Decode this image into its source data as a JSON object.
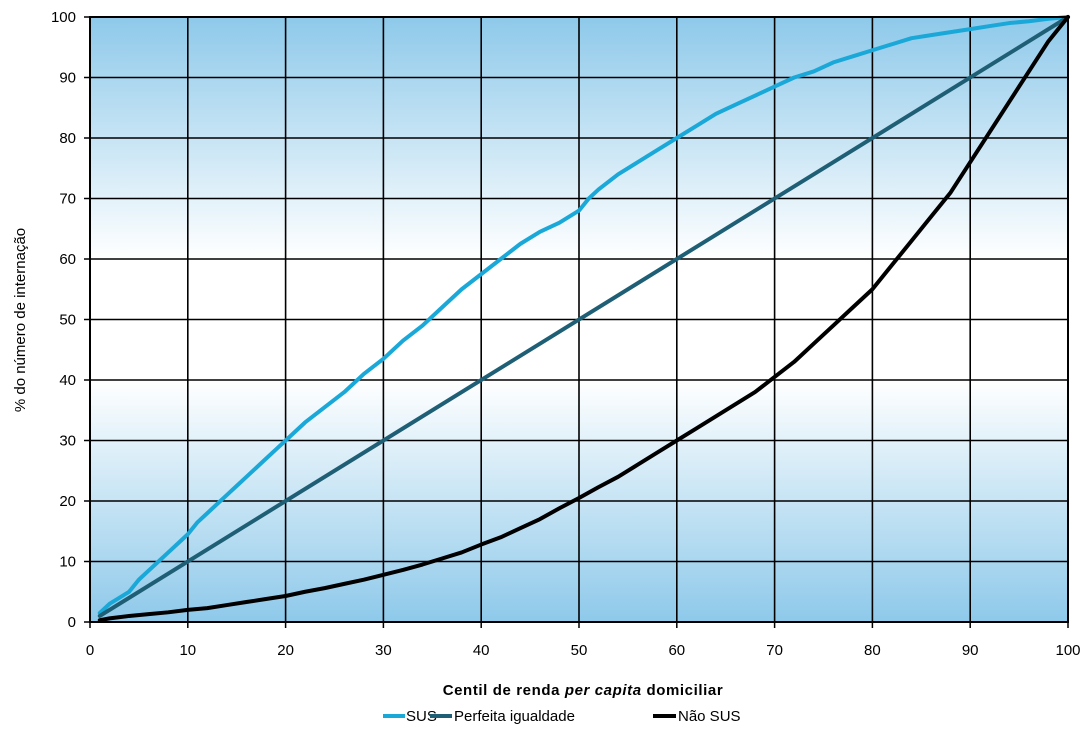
{
  "chart_data": {
    "type": "line",
    "title": "",
    "xlabel_parts": [
      "Centil de renda ",
      "per capita",
      " domiciliar"
    ],
    "ylabel": "% do número de internação",
    "xlim": [
      0,
      100
    ],
    "ylim": [
      0,
      100
    ],
    "xticks": [
      "0",
      "10",
      "20",
      "30",
      "40",
      "50",
      "60",
      "70",
      "80",
      "90",
      "100"
    ],
    "yticks": [
      "0",
      "10",
      "20",
      "30",
      "40",
      "50",
      "60",
      "70",
      "80",
      "90",
      "100"
    ],
    "grid": true,
    "legend_position": "bottom",
    "colors": {
      "sus": "#1aa8d8",
      "igualdade": "#1f5f75",
      "naosus": "#000000",
      "bg_edge": "#8ec9ea",
      "bg_center": "#ffffff"
    },
    "series": [
      {
        "name": "SUS",
        "x": [
          1,
          2,
          3,
          4,
          5,
          6,
          7,
          8,
          9,
          10,
          11,
          12,
          13,
          14,
          15,
          16,
          17,
          18,
          19,
          20,
          22,
          24,
          26,
          28,
          30,
          32,
          34,
          36,
          38,
          40,
          42,
          44,
          46,
          48,
          50,
          51,
          52,
          54,
          56,
          58,
          60,
          62,
          64,
          66,
          68,
          70,
          72,
          74,
          76,
          78,
          80,
          82,
          84,
          86,
          88,
          90,
          92,
          94,
          96,
          98,
          100
        ],
        "values": [
          1.5,
          3,
          4,
          5,
          7,
          8.5,
          10,
          11.5,
          13,
          14.5,
          16.5,
          18,
          19.5,
          21,
          22.5,
          24,
          25.5,
          27,
          28.5,
          30,
          33,
          35.5,
          38,
          41,
          43.5,
          46.5,
          49,
          52,
          55,
          57.5,
          60,
          62.5,
          64.5,
          66,
          68,
          70,
          71.5,
          74,
          76,
          78,
          80,
          82,
          84,
          85.5,
          87,
          88.5,
          90,
          91,
          92.5,
          93.5,
          94.5,
          95.5,
          96.5,
          97,
          97.5,
          98,
          98.5,
          99,
          99.3,
          99.7,
          100
        ]
      },
      {
        "name": "Perfeita igualdade",
        "x": [
          1,
          100
        ],
        "values": [
          1,
          100
        ]
      },
      {
        "name": "Não SUS",
        "x": [
          1,
          2,
          4,
          6,
          8,
          10,
          12,
          14,
          16,
          18,
          20,
          22,
          24,
          26,
          28,
          30,
          32,
          34,
          36,
          38,
          40,
          42,
          44,
          46,
          48,
          50,
          52,
          54,
          56,
          58,
          60,
          62,
          64,
          66,
          68,
          70,
          72,
          74,
          76,
          78,
          80,
          82,
          84,
          86,
          88,
          90,
          92,
          94,
          96,
          98,
          100
        ],
        "values": [
          0.3,
          0.6,
          1,
          1.3,
          1.6,
          2,
          2.3,
          2.8,
          3.3,
          3.8,
          4.3,
          5,
          5.6,
          6.3,
          7,
          7.8,
          8.6,
          9.5,
          10.5,
          11.5,
          12.8,
          14,
          15.5,
          17,
          18.8,
          20.5,
          22.3,
          24,
          26,
          28,
          30,
          32,
          34,
          36,
          38,
          40.5,
          43,
          46,
          49,
          52,
          55,
          59,
          63,
          67,
          71,
          76,
          81,
          86,
          91,
          96,
          100
        ]
      }
    ]
  }
}
